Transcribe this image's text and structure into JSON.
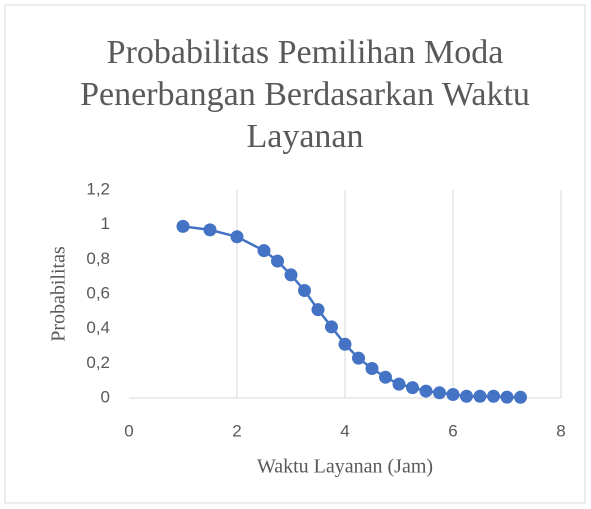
{
  "chart_data": {
    "type": "line",
    "title": "Probabilitas Pemilihan Moda Penerbangan Berdasarkan Waktu Layanan",
    "x_label": "Waktu Layanan (Jam)",
    "y_label": "Probabilitas",
    "x": [
      1,
      1.5,
      2,
      2.5,
      2.75,
      3,
      3.25,
      3.5,
      3.75,
      4,
      4.25,
      4.5,
      4.75,
      5,
      5.25,
      5.5,
      5.75,
      6,
      6.25,
      6.5,
      6.75,
      7,
      7.25
    ],
    "values": [
      0.99,
      0.97,
      0.93,
      0.85,
      0.79,
      0.71,
      0.62,
      0.51,
      0.41,
      0.31,
      0.23,
      0.17,
      0.12,
      0.08,
      0.06,
      0.04,
      0.03,
      0.02,
      0.01,
      0.01,
      0.01,
      0.005,
      0.004
    ],
    "color": "#4472c4",
    "xlim": [
      0,
      8
    ],
    "xticks": [
      0,
      2,
      4,
      6,
      8
    ],
    "ylim": [
      0,
      1.2
    ],
    "yticks": [
      0,
      {
        "value": 0.2,
        "label": "0,2"
      },
      {
        "value": 0.4,
        "label": "0,4"
      },
      {
        "value": 0.6,
        "label": "0,6"
      },
      {
        "value": 0.8,
        "label": "0,8"
      },
      1,
      {
        "value": 1.2,
        "label": "1,2"
      }
    ],
    "grid": "x"
  }
}
